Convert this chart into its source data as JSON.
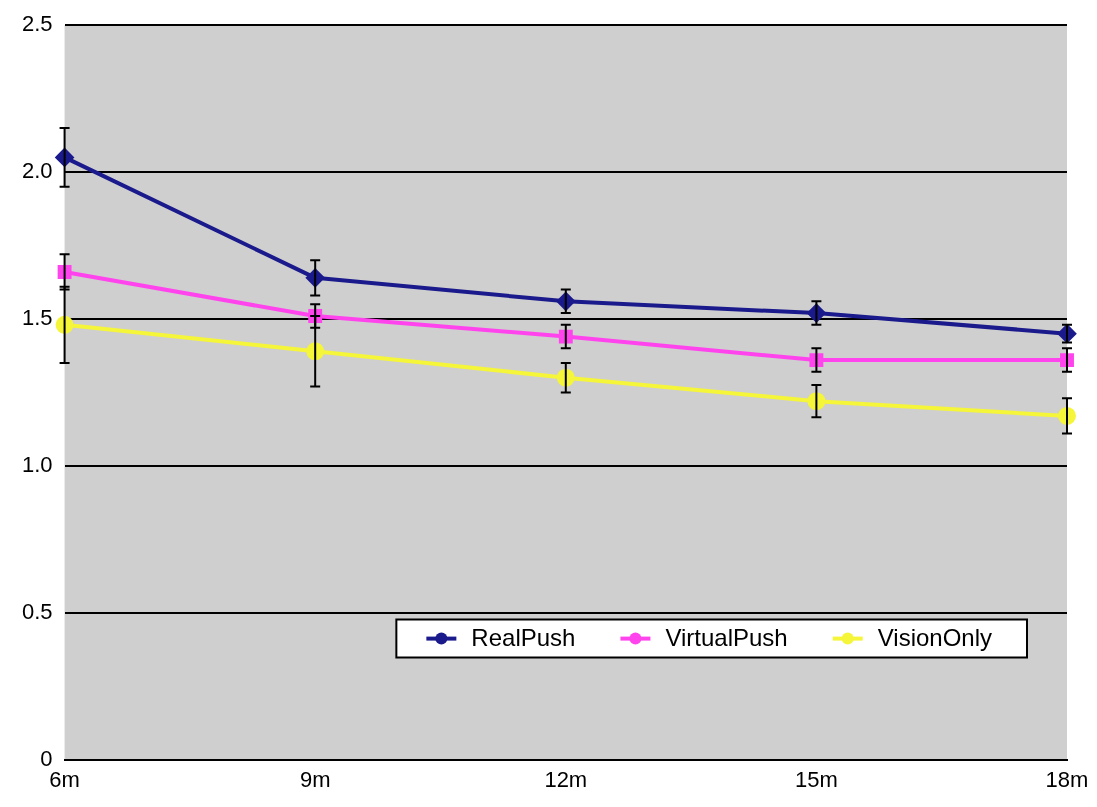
{
  "chart_data": {
    "type": "line",
    "categories": [
      "6m",
      "9m",
      "12m",
      "15m",
      "18m"
    ],
    "series": [
      {
        "name": "RealPush",
        "color": "#1a1a8c",
        "marker": "diamond",
        "values": [
          2.05,
          1.64,
          1.56,
          1.52,
          1.45
        ],
        "errors": [
          0.1,
          0.06,
          0.04,
          0.04,
          0.03
        ]
      },
      {
        "name": "VirtualPush",
        "color": "#ff44ee",
        "marker": "square",
        "values": [
          1.66,
          1.51,
          1.44,
          1.36,
          1.36
        ],
        "errors": [
          0.06,
          0.04,
          0.04,
          0.04,
          0.04
        ]
      },
      {
        "name": "VisionOnly",
        "color": "#f5f53a",
        "marker": "circle",
        "values": [
          1.48,
          1.39,
          1.3,
          1.22,
          1.17
        ],
        "errors": [
          0.13,
          0.12,
          0.05,
          0.055,
          0.06
        ]
      }
    ],
    "ylim": [
      0,
      2.5
    ],
    "yticks": [
      0,
      {
        "value": 0.5,
        "label": "0.5"
      },
      {
        "value": 1,
        "label": "1.0"
      },
      {
        "value": 1.5,
        "label": "1.5"
      },
      {
        "value": 2,
        "label": "2.0"
      },
      {
        "value": 2.5,
        "label": "2.5"
      }
    ],
    "grid": "y",
    "legend": "bottom right"
  }
}
